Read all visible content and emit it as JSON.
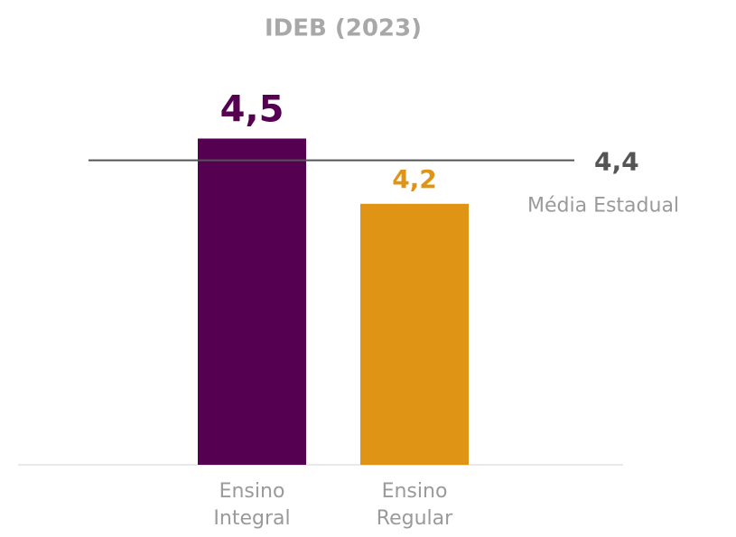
{
  "chart_data": {
    "type": "bar",
    "title": "IDEB (2023)",
    "categories": [
      "Ensino Integral",
      "Ensino Regular"
    ],
    "values": [
      4.5,
      4.2
    ],
    "value_labels": [
      "4,5",
      "4,2"
    ],
    "colors": [
      "#560052",
      "#e09416"
    ],
    "ylim": [
      3,
      5
    ],
    "reference_line": {
      "value": 4.4,
      "value_label": "4,4",
      "label": "Média Estadual",
      "color": "#555555"
    }
  }
}
